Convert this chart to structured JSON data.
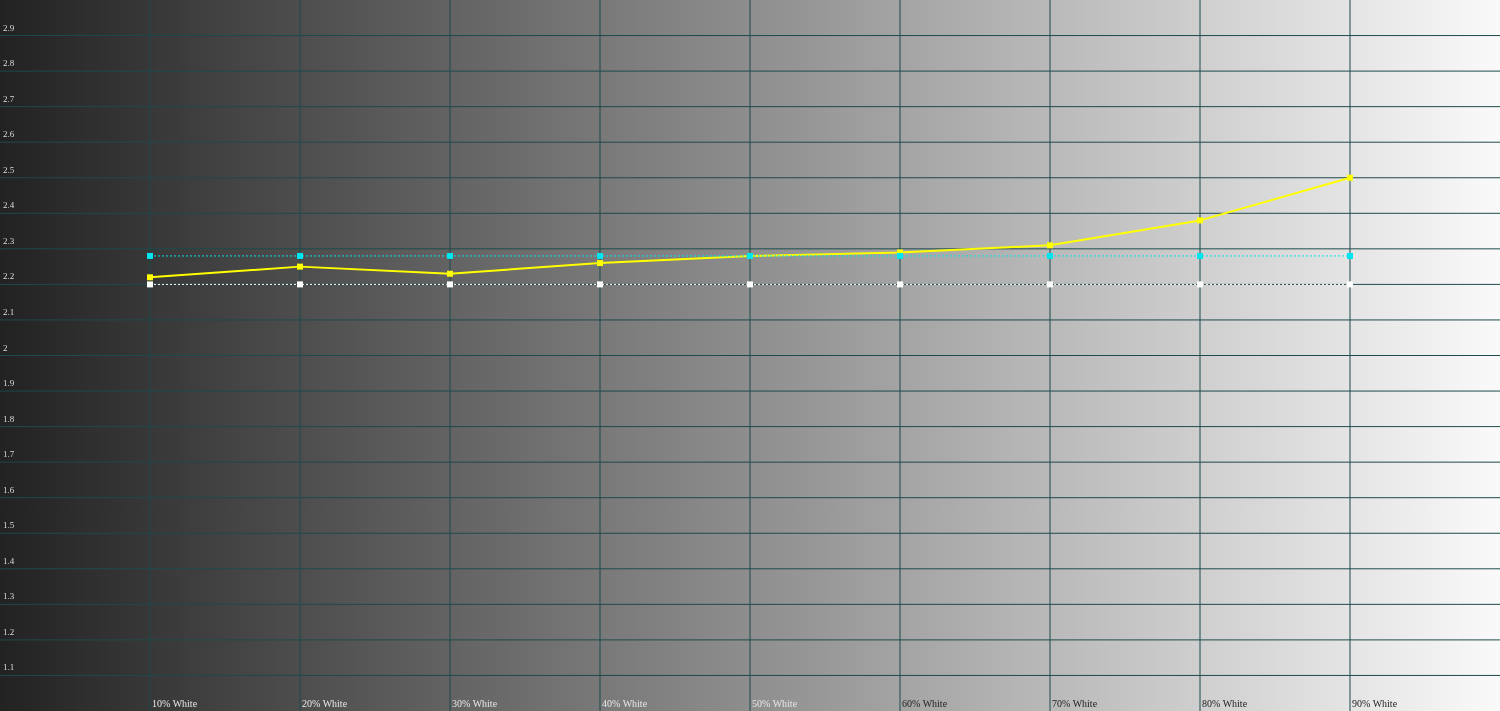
{
  "chart_data": {
    "type": "line",
    "categories": [
      "10% White",
      "20% White",
      "30% White",
      "40% White",
      "50% White",
      "60% White",
      "70% White",
      "80% White",
      "90% White"
    ],
    "series": [
      {
        "color": "#ffffff",
        "values": [
          2.2,
          2.2,
          2.2,
          2.2,
          2.2,
          2.2,
          2.2,
          2.2,
          2.2
        ],
        "line_style": "dotted"
      },
      {
        "color": "#ffff00",
        "values": [
          2.22,
          2.25,
          2.23,
          2.26,
          2.28,
          2.29,
          2.31,
          2.38,
          2.5
        ],
        "line_style": "solid"
      },
      {
        "color": "#00e5ee",
        "values": [
          2.28,
          2.28,
          2.28,
          2.28,
          2.28,
          2.28,
          2.28,
          2.28,
          2.28
        ],
        "line_style": "dotted"
      }
    ],
    "ylim": [
      1.0,
      3.0
    ],
    "yticks": [
      1.1,
      1.2,
      1.3,
      1.4,
      1.5,
      1.6,
      1.7,
      1.8,
      1.9,
      2,
      2.1,
      2.2,
      2.3,
      2.4,
      2.5,
      2.6,
      2.7,
      2.8,
      2.9
    ],
    "grid": true,
    "marker": "square"
  }
}
